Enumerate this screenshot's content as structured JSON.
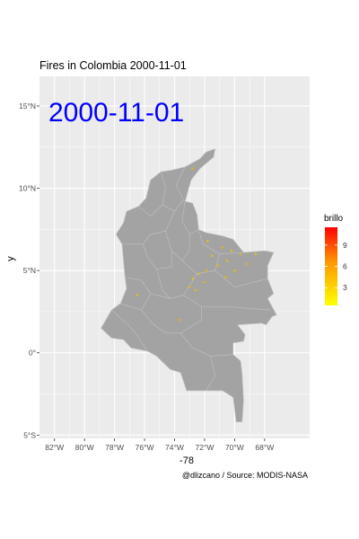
{
  "chart_data": {
    "type": "scatter",
    "title": "Fires in Colombia 2000-11-01",
    "date_label": "2000-11-01",
    "xlabel": "-78",
    "ylabel": "y",
    "caption": "@dlizcano / Source: MODIS-NASA",
    "xlim": [
      -83,
      -65
    ],
    "ylim": [
      -5.2,
      16.8
    ],
    "x_ticks": [
      {
        "value": -82,
        "label": "82°W"
      },
      {
        "value": -80,
        "label": "80°W"
      },
      {
        "value": -78,
        "label": "78°W"
      },
      {
        "value": -76,
        "label": "76°W"
      },
      {
        "value": -74,
        "label": "74°W"
      },
      {
        "value": -72,
        "label": "72°W"
      },
      {
        "value": -70,
        "label": "70°W"
      },
      {
        "value": -68,
        "label": "68°W"
      }
    ],
    "y_ticks": [
      {
        "value": -5,
        "label": "5°S"
      },
      {
        "value": 0,
        "label": "0°"
      },
      {
        "value": 5,
        "label": "5°N"
      },
      {
        "value": 10,
        "label": "10°N"
      },
      {
        "value": 15,
        "label": "15°N"
      }
    ],
    "legend": {
      "title": "brillo",
      "position": "right",
      "range": [
        0.5,
        11.5
      ],
      "ticks": [
        {
          "value": 3,
          "label": "3"
        },
        {
          "value": 6,
          "label": "6"
        },
        {
          "value": 9,
          "label": "9"
        }
      ],
      "color_low": "#ffff00",
      "color_high": "#ff0000"
    },
    "grid": true,
    "colors": {
      "panel": "#ebebeb",
      "gridline": "#ffffff",
      "land": "#a3a3a3",
      "boundary": "#c2c2c2",
      "date_label": "#0000ff"
    },
    "points": [
      {
        "lon": -70.8,
        "lat": 6.4,
        "brillo": 3
      },
      {
        "lon": -70.2,
        "lat": 6.2,
        "brillo": 2
      },
      {
        "lon": -69.6,
        "lat": 6.0,
        "brillo": 3
      },
      {
        "lon": -71.5,
        "lat": 5.9,
        "brillo": 2
      },
      {
        "lon": -71.1,
        "lat": 5.3,
        "brillo": 3
      },
      {
        "lon": -70.5,
        "lat": 5.6,
        "brillo": 2
      },
      {
        "lon": -71.9,
        "lat": 5.0,
        "brillo": 3
      },
      {
        "lon": -72.4,
        "lat": 4.8,
        "brillo": 2
      },
      {
        "lon": -72.0,
        "lat": 4.3,
        "brillo": 3
      },
      {
        "lon": -72.8,
        "lat": 4.5,
        "brillo": 2
      },
      {
        "lon": -73.0,
        "lat": 4.0,
        "brillo": 3
      },
      {
        "lon": -72.6,
        "lat": 3.8,
        "brillo": 2
      },
      {
        "lon": -70.0,
        "lat": 5.0,
        "brillo": 2
      },
      {
        "lon": -69.2,
        "lat": 5.4,
        "brillo": 3
      },
      {
        "lon": -68.6,
        "lat": 6.0,
        "brillo": 2
      },
      {
        "lon": -73.7,
        "lat": 2.0,
        "brillo": 3
      },
      {
        "lon": -76.5,
        "lat": 3.5,
        "brillo": 2
      },
      {
        "lon": -72.8,
        "lat": 11.2,
        "brillo": 3
      },
      {
        "lon": -71.8,
        "lat": 6.8,
        "brillo": 2
      },
      {
        "lon": -70.6,
        "lat": 4.6,
        "brillo": 3
      }
    ]
  }
}
